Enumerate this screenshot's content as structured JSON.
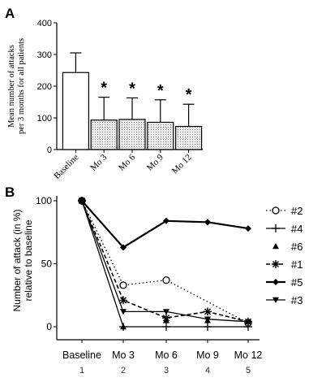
{
  "chart_data": [
    {
      "panel": "A",
      "type": "bar",
      "ylabel": "Mean number of attacks per 3 months for all patients",
      "ylabel_lines": [
        "Mean number of attacks",
        "per 3 months for all patients"
      ],
      "ylim": [
        0,
        400
      ],
      "yticks": [
        "0",
        "100",
        "200",
        "300",
        "400"
      ],
      "categories": [
        "Baseline",
        "Mo 3",
        "Mo 6",
        "Mo 9",
        "Mo 12"
      ],
      "values": [
        243,
        93,
        95,
        86,
        73
      ],
      "error_upper": [
        305,
        165,
        163,
        157,
        143
      ],
      "significance": [
        "",
        "*",
        "*",
        "*",
        "*"
      ],
      "bar_fill": [
        "white",
        "dotted",
        "dotted",
        "dotted",
        "dotted"
      ],
      "grid": false
    },
    {
      "panel": "B",
      "type": "line",
      "ylabel": "Number of attack (in %) relative to baseline",
      "ylabel_lines": [
        "Number of attack (in %)",
        "relative to baseline"
      ],
      "ylim": [
        0,
        100
      ],
      "yticks": [
        "0",
        "50",
        "100"
      ],
      "categories": [
        "Baseline",
        "Mo 3",
        "Mo 6",
        "Mo 9",
        "Mo 12"
      ],
      "x_numbers": [
        "1",
        "2",
        "3",
        "4",
        "5"
      ],
      "legend_position": "right",
      "grid": false,
      "series": [
        {
          "name": "#2",
          "marker": "open-circle",
          "line": "dotted",
          "values": [
            100,
            33,
            37,
            null,
            3
          ]
        },
        {
          "name": "#4",
          "marker": "plus",
          "line": "solid",
          "values": [
            100,
            0,
            0,
            0,
            0
          ]
        },
        {
          "name": "#6",
          "marker": "triangle-up",
          "line": "none",
          "values": [
            100,
            0,
            5,
            5,
            4
          ]
        },
        {
          "name": "#1",
          "marker": "asterisk",
          "line": "dashed",
          "values": [
            100,
            21,
            7,
            12,
            4
          ]
        },
        {
          "name": "#5",
          "marker": "diamond",
          "line": "solid-thick",
          "values": [
            100,
            63,
            84,
            83,
            78
          ]
        },
        {
          "name": "#3",
          "marker": "triangle-down",
          "line": "solid",
          "values": [
            100,
            12,
            12,
            6,
            4
          ]
        }
      ]
    }
  ],
  "panel_labels": [
    "A",
    "B"
  ]
}
